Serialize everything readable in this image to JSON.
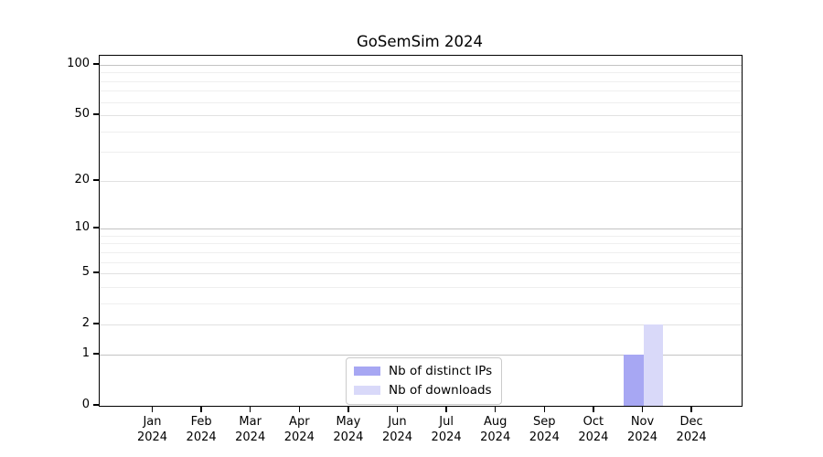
{
  "chart_data": {
    "type": "bar",
    "title": "GoSemSim 2024",
    "categories": [
      "Jan 2024",
      "Feb 2024",
      "Mar 2024",
      "Apr 2024",
      "May 2024",
      "Jun 2024",
      "Jul 2024",
      "Aug 2024",
      "Sep 2024",
      "Oct 2024",
      "Nov 2024",
      "Dec 2024"
    ],
    "series": [
      {
        "name": "Nb of distinct IPs",
        "color": "#a7a7f3",
        "values": [
          0,
          0,
          0,
          0,
          0,
          0,
          0,
          0,
          0,
          0,
          1,
          0
        ]
      },
      {
        "name": "Nb of downloads",
        "color": "#d9d9f9",
        "values": [
          0,
          0,
          0,
          0,
          0,
          0,
          0,
          0,
          0,
          0,
          2,
          0
        ]
      }
    ],
    "xlabel": "",
    "ylabel": "",
    "yscale": "log1p",
    "ylim": [
      0,
      113
    ],
    "yticks": [
      0,
      1,
      2,
      5,
      10,
      20,
      50,
      100
    ],
    "yticks_decade": [
      1,
      10,
      100
    ],
    "yticks_minor": [
      3,
      4,
      6,
      7,
      8,
      9,
      30,
      40,
      60,
      70,
      80,
      90
    ],
    "grid": true,
    "legend": {
      "position": "lower center",
      "entries": [
        "Nb of distinct IPs",
        "Nb of downloads"
      ]
    }
  }
}
